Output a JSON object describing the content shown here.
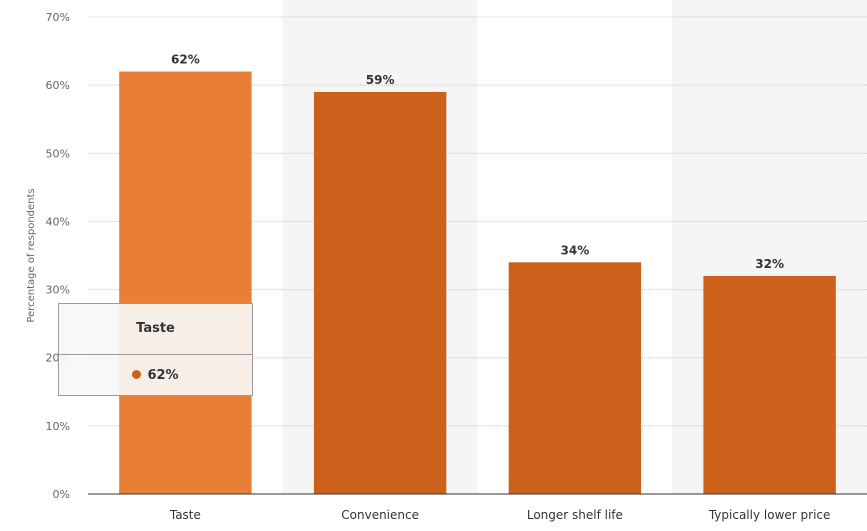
{
  "chart_data": {
    "type": "bar",
    "title": "",
    "xlabel": "",
    "ylabel": "Percentage of respondents",
    "categories": [
      "Taste",
      "Convenience",
      "Longer shelf life",
      "Typically lower price"
    ],
    "values": [
      62,
      59,
      34,
      32
    ],
    "value_labels": [
      "62%",
      "59%",
      "34%",
      "32%"
    ],
    "ylim": [
      0,
      70
    ],
    "yticks": [
      0,
      10,
      20,
      30,
      40,
      50,
      60,
      70
    ],
    "ytick_labels": [
      "0%",
      "10%",
      "20%",
      "30%",
      "40%",
      "50%",
      "60%",
      "70%"
    ],
    "grid": true,
    "colors": {
      "bar": "#cc611c",
      "highlight": "#e97f35"
    },
    "highlighted_category": "Taste"
  },
  "tooltip": {
    "title": "Taste",
    "value": "62%",
    "dot_color": "#cc611c"
  }
}
